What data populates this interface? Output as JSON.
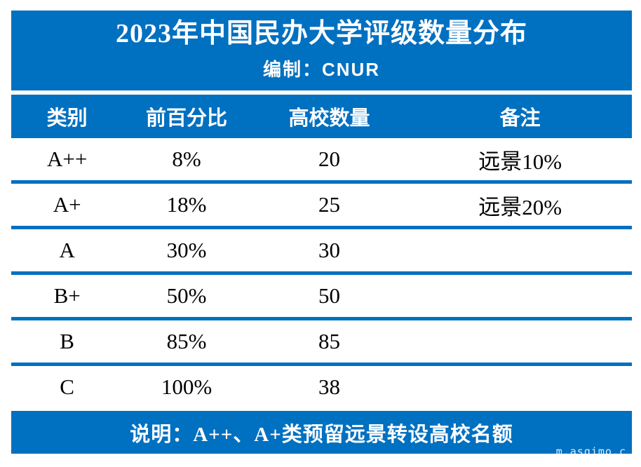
{
  "accent_color": "#0070C0",
  "text_color": "#000000",
  "header": {
    "title": "2023年中国民办大学评级数量分布",
    "subtitle": "编制：CNUR"
  },
  "table": {
    "columns": [
      "类别",
      "前百分比",
      "高校数量",
      "备注"
    ],
    "rows": [
      {
        "category": "A++",
        "percent": "8%",
        "count": "20",
        "note": "远景10%"
      },
      {
        "category": "A+",
        "percent": "18%",
        "count": "25",
        "note": "远景20%"
      },
      {
        "category": "A",
        "percent": "30%",
        "count": "30",
        "note": ""
      },
      {
        "category": "B+",
        "percent": "50%",
        "count": "50",
        "note": ""
      },
      {
        "category": "B",
        "percent": "85%",
        "count": "85",
        "note": ""
      },
      {
        "category": "C",
        "percent": "100%",
        "count": "38",
        "note": ""
      }
    ]
  },
  "footer": {
    "note": "说明：A++、A+类预留远景转设高校名额"
  },
  "watermark": "m.asqimo.c",
  "chart_data": {
    "type": "table",
    "title": "2023年中国民办大学评级数量分布",
    "subtitle": "编制：CNUR",
    "columns": [
      "类别",
      "前百分比",
      "高校数量",
      "备注"
    ],
    "rows": [
      [
        "A++",
        "8%",
        "20",
        "远景10%"
      ],
      [
        "A+",
        "18%",
        "25",
        "远景20%"
      ],
      [
        "A",
        "30%",
        "30",
        ""
      ],
      [
        "B+",
        "50%",
        "50",
        ""
      ],
      [
        "B",
        "85%",
        "85",
        ""
      ],
      [
        "C",
        "100%",
        "38",
        ""
      ]
    ],
    "footnote": "说明：A++、A+类预留远景转设高校名额",
    "notes": "blue header/footer bands (#0070C0), white data rows separated by thick blue rules, no vertical gridlines"
  }
}
